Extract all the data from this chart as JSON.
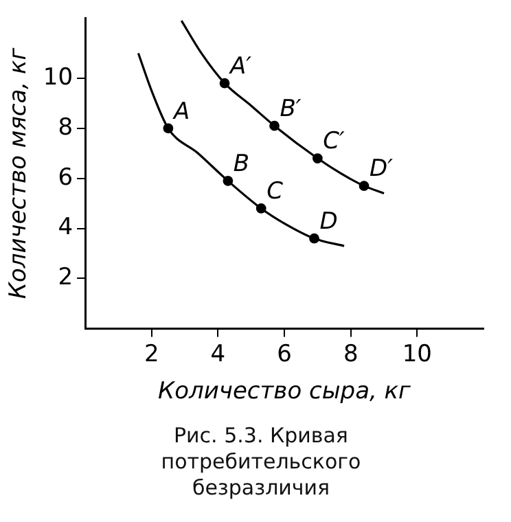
{
  "chart_data": {
    "type": "line",
    "xlabel": "Количество сыра, кг",
    "ylabel": "Количество мяса, кг",
    "xlim": [
      0,
      12
    ],
    "ylim": [
      0,
      12.4
    ],
    "xticks": [
      2,
      4,
      6,
      8,
      10
    ],
    "yticks": [
      2,
      4,
      6,
      8,
      10
    ],
    "grid": false,
    "legend": false,
    "series": [
      {
        "marker": "none",
        "color": "#000000",
        "x": [
          1.6,
          2.0,
          2.5,
          3.4,
          4.3,
          5.3,
          6.0,
          6.9,
          7.8
        ],
        "values": [
          11.0,
          9.5,
          8,
          7.0,
          5.9,
          4.8,
          4.2,
          3.6,
          3.3
        ]
      },
      {
        "marker": "none",
        "color": "#000000",
        "x": [
          2.9,
          3.5,
          4.2,
          5.0,
          5.7,
          7.0,
          7.7,
          8.4,
          9.0
        ],
        "values": [
          12.3,
          11.0,
          9.8,
          8.9,
          8.1,
          6.8,
          6.2,
          5.7,
          5.4
        ]
      },
      {
        "type": "scatter",
        "marker": "circle",
        "color": "#000000",
        "x": [
          2.5,
          4.3,
          5.3,
          6.9
        ],
        "values": [
          8,
          5.9,
          4.8,
          3.6
        ]
      },
      {
        "type": "scatter",
        "marker": "circle",
        "color": "#000000",
        "x": [
          4.2,
          5.7,
          7.0,
          8.4
        ],
        "values": [
          9.8,
          8.1,
          6.8,
          5.7
        ]
      }
    ],
    "annotations": [
      {
        "text": "A",
        "x": 2.5,
        "y": 8
      },
      {
        "text": "B",
        "x": 4.3,
        "y": 5.9
      },
      {
        "text": "C",
        "x": 5.3,
        "y": 4.8
      },
      {
        "text": "D",
        "x": 6.9,
        "y": 3.6
      },
      {
        "text": "A′",
        "x": 4.2,
        "y": 9.8
      },
      {
        "text": "B′",
        "x": 5.7,
        "y": 8.1
      },
      {
        "text": "C′",
        "x": 7.0,
        "y": 6.8
      },
      {
        "text": "D′",
        "x": 8.4,
        "y": 5.7
      },
      "Рис. 5.3. Кривая потребительского безразличия"
    ]
  }
}
